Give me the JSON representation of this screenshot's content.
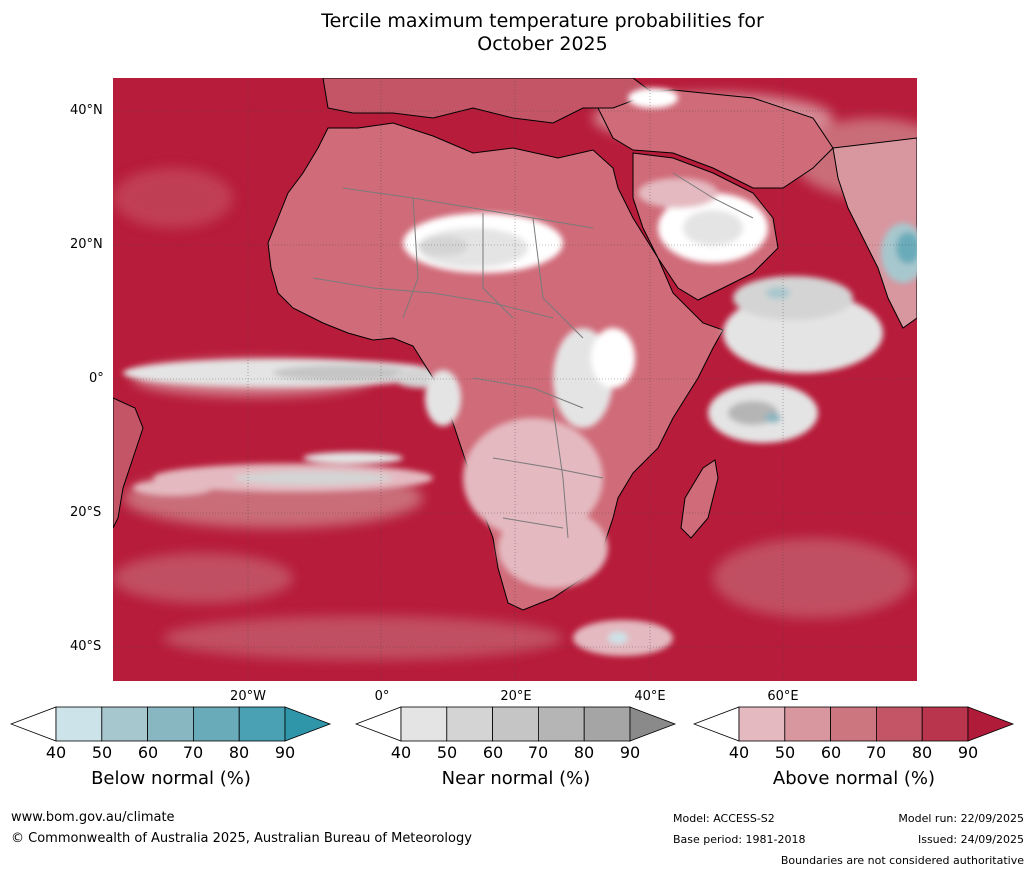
{
  "title": {
    "line1": "Tercile maximum temperature probabilities for",
    "line2": "October 2025"
  },
  "map": {
    "lat_labels": [
      "40°N",
      "20°N",
      "0°",
      "20°S",
      "40°S"
    ],
    "lon_labels": [
      "20°W",
      "0°",
      "20°E",
      "40°E",
      "60°E"
    ],
    "region": "Africa",
    "colors": {
      "ocean_base": "#b71c3a",
      "land_base": "#d06b79"
    }
  },
  "legend": {
    "below": {
      "label": "Below normal (%)",
      "ticks": [
        "40",
        "50",
        "60",
        "70",
        "80",
        "90"
      ],
      "colors": [
        "#ffffff",
        "#cce3e9",
        "#a7c7ce",
        "#88b6c1",
        "#6aabba",
        "#4aa1b3",
        "#2f95a9"
      ]
    },
    "near": {
      "label": "Near normal (%)",
      "ticks": [
        "40",
        "50",
        "60",
        "70",
        "80",
        "90"
      ],
      "colors": [
        "#ffffff",
        "#e4e4e4",
        "#d4d4d4",
        "#c5c5c5",
        "#b5b5b5",
        "#a5a5a5",
        "#8a8a8a"
      ]
    },
    "above": {
      "label": "Above normal (%)",
      "ticks": [
        "40",
        "50",
        "60",
        "70",
        "80",
        "90"
      ],
      "colors": [
        "#ffffff",
        "#e4b9c0",
        "#d8969f",
        "#cc7680",
        "#c35567",
        "#b9344d",
        "#b01b3a"
      ]
    }
  },
  "footer": {
    "url": "www.bom.gov.au/climate",
    "copyright": "© Commonwealth of Australia 2025, Australian Bureau of Meteorology",
    "model": "Model: ACCESS-S2",
    "base_period": "Base period: 1981-2018",
    "model_run": "Model run: 22/09/2025",
    "issued": "Issued: 24/09/2025",
    "disclaimer": "Boundaries are not considered authoritative"
  }
}
